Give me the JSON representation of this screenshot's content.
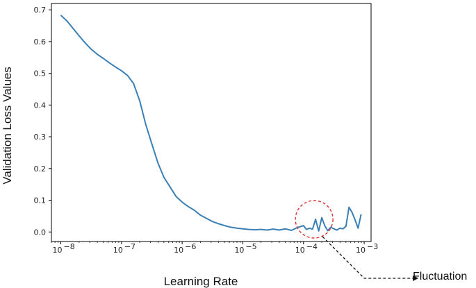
{
  "chart_data": {
    "type": "line",
    "title": "",
    "xlabel": "Learning Rate",
    "ylabel": "Validation Loss Values",
    "xscale": "log",
    "xlim": [
      7e-09,
      0.0013
    ],
    "ylim": [
      -0.03,
      0.72
    ],
    "grid": false,
    "legend": "none",
    "x_ticks": [
      {
        "value": 1e-08,
        "label": "10",
        "exp": "−8"
      },
      {
        "value": 1e-07,
        "label": "10",
        "exp": "−7"
      },
      {
        "value": 1e-06,
        "label": "10",
        "exp": "−6"
      },
      {
        "value": 1e-05,
        "label": "10",
        "exp": "−5"
      },
      {
        "value": 0.0001,
        "label": "10",
        "exp": "−4"
      },
      {
        "value": 0.001,
        "label": "10",
        "exp": "−3"
      }
    ],
    "y_ticks": [
      {
        "value": 0.0,
        "label": "0.0"
      },
      {
        "value": 0.1,
        "label": "0.1"
      },
      {
        "value": 0.2,
        "label": "0.2"
      },
      {
        "value": 0.3,
        "label": "0.3"
      },
      {
        "value": 0.4,
        "label": "0.4"
      },
      {
        "value": 0.5,
        "label": "0.5"
      },
      {
        "value": 0.6,
        "label": "0.6"
      },
      {
        "value": 0.7,
        "label": "0.7"
      }
    ],
    "series": [
      {
        "color": "#3a7fb5",
        "points": [
          [
            1e-08,
            0.683
          ],
          [
            1.26e-08,
            0.665
          ],
          [
            1.58e-08,
            0.642
          ],
          [
            2e-08,
            0.618
          ],
          [
            2.51e-08,
            0.596
          ],
          [
            3.16e-08,
            0.576
          ],
          [
            3.98e-08,
            0.56
          ],
          [
            5.01e-08,
            0.547
          ],
          [
            6.31e-08,
            0.533
          ],
          [
            7.94e-08,
            0.52
          ],
          [
            1e-07,
            0.508
          ],
          [
            1.26e-07,
            0.493
          ],
          [
            1.58e-07,
            0.468
          ],
          [
            2e-07,
            0.413
          ],
          [
            2.51e-07,
            0.339
          ],
          [
            3.16e-07,
            0.278
          ],
          [
            3.98e-07,
            0.218
          ],
          [
            5.01e-07,
            0.172
          ],
          [
            6.31e-07,
            0.142
          ],
          [
            7.94e-07,
            0.112
          ],
          [
            1e-06,
            0.094
          ],
          [
            1.26e-06,
            0.08
          ],
          [
            1.58e-06,
            0.069
          ],
          [
            2e-06,
            0.053
          ],
          [
            2.51e-06,
            0.043
          ],
          [
            3.16e-06,
            0.033
          ],
          [
            3.98e-06,
            0.026
          ],
          [
            5.01e-06,
            0.02
          ],
          [
            6.31e-06,
            0.015
          ],
          [
            7.94e-06,
            0.012
          ],
          [
            1e-05,
            0.01
          ],
          [
            1.26e-05,
            0.008
          ],
          [
            1.58e-05,
            0.007
          ],
          [
            2e-05,
            0.008
          ],
          [
            2.51e-05,
            0.006
          ],
          [
            3.16e-05,
            0.009
          ],
          [
            3.98e-05,
            0.006
          ],
          [
            5.01e-05,
            0.01
          ],
          [
            6.31e-05,
            0.005
          ],
          [
            7.94e-05,
            0.014
          ],
          [
            0.0001,
            0.02
          ],
          [
            0.000112,
            0.008
          ],
          [
            0.000126,
            0.012
          ],
          [
            0.000141,
            0.009
          ],
          [
            0.000158,
            0.04
          ],
          [
            0.000178,
            0.003
          ],
          [
            0.0002,
            0.045
          ],
          [
            0.000224,
            0.02
          ],
          [
            0.000251,
            0.004
          ],
          [
            0.000282,
            0.015
          ],
          [
            0.000316,
            0.01
          ],
          [
            0.000355,
            0.006
          ],
          [
            0.000398,
            0.012
          ],
          [
            0.000447,
            0.01
          ],
          [
            0.000501,
            0.018
          ],
          [
            0.000562,
            0.078
          ],
          [
            0.000631,
            0.062
          ],
          [
            0.000708,
            0.038
          ],
          [
            0.000794,
            0.012
          ],
          [
            0.000891,
            0.056
          ]
        ]
      }
    ],
    "annotations": [
      {
        "text": "Fluctuation",
        "circle_center": [
          0.00015,
          0.04
        ],
        "circle_color": "#e03030",
        "arrow_color": "#111111"
      }
    ]
  }
}
